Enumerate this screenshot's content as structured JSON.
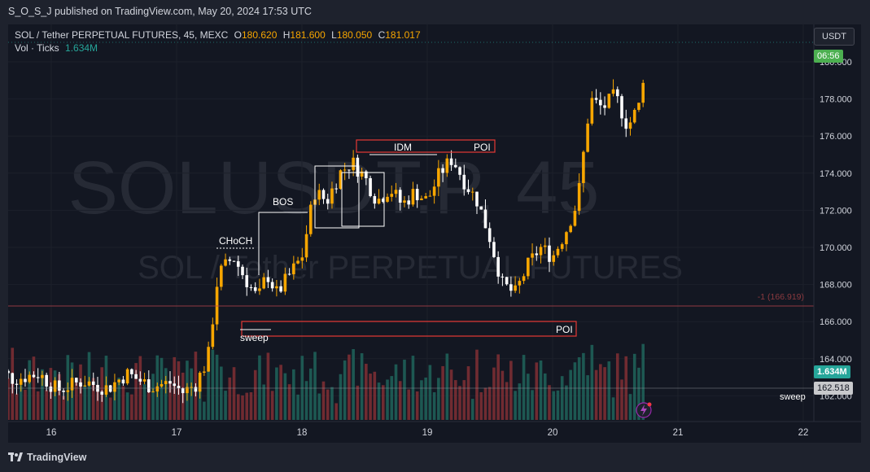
{
  "header": {
    "publisher": "S_O_S_J published on TradingView.com, May 20, 2024 17:53 UTC"
  },
  "legend": {
    "title": "SOL / Tether PERPETUAL FUTURES, 45, MEXC",
    "open_label": "O",
    "open": "180.620",
    "high_label": "H",
    "high": "181.600",
    "low_label": "L",
    "low": "180.050",
    "close_label": "C",
    "close": "181.017",
    "vol_label": "Vol · Ticks",
    "vol_value": "1.634M"
  },
  "currency_button": "USDT",
  "watermark": {
    "symbol": "SOLUSDT.P, 45",
    "description": "SOL / Tether PERPETUAL FUTURES"
  },
  "annotations": {
    "choch": "CHoCH",
    "bos": "BOS",
    "idm": "IDM",
    "poi_top": "POI",
    "poi_bottom": "POI",
    "sweep": "sweep",
    "sweep_right": "sweep",
    "level_label": "-1 (166.919)"
  },
  "price_axis": {
    "ticks": [
      "180.000",
      "178.000",
      "176.000",
      "174.000",
      "172.000",
      "170.000",
      "168.000",
      "166.000",
      "164.000",
      "162.000"
    ],
    "countdown": "06:56",
    "volume_tag": "1.634M",
    "level_tag": "162.518"
  },
  "time_axis": {
    "ticks": [
      "16",
      "17",
      "18",
      "19",
      "20",
      "21",
      "22"
    ]
  },
  "footer": {
    "brand": "TradingView"
  },
  "colors": {
    "bull": "#f7a600",
    "bear": "#ffffff",
    "accent_green": "#26a69a",
    "annotation_red": "#e53935",
    "background": "#131722"
  },
  "chart_data": {
    "type": "candlestick",
    "symbol": "SOL / Tether PERPETUAL FUTURES",
    "interval": "45",
    "exchange": "MEXC",
    "last_ohlc": {
      "open": 180.62,
      "high": 181.6,
      "low": 180.05,
      "close": 181.017
    },
    "ylim": [
      161.3,
      181.4
    ],
    "x_ticks": [
      "16",
      "17",
      "18",
      "19",
      "20",
      "21",
      "22"
    ],
    "price_points": [
      [
        15.52,
        163.6
      ],
      [
        15.7,
        162.9
      ],
      [
        15.9,
        163.2
      ],
      [
        16.05,
        162.3
      ],
      [
        16.25,
        162.8
      ],
      [
        16.45,
        162.4
      ],
      [
        16.6,
        163.2
      ],
      [
        16.8,
        162.5
      ],
      [
        16.95,
        162.7
      ],
      [
        17.05,
        162.2
      ],
      [
        17.15,
        162.6
      ],
      [
        17.25,
        164.0
      ],
      [
        17.33,
        168.5
      ],
      [
        17.45,
        169.5
      ],
      [
        17.55,
        168.3
      ],
      [
        17.65,
        167.2
      ],
      [
        17.72,
        168.6
      ],
      [
        17.8,
        167.5
      ],
      [
        17.9,
        168.5
      ],
      [
        18.0,
        169.5
      ],
      [
        18.1,
        173.0
      ],
      [
        18.2,
        172.5
      ],
      [
        18.3,
        174.0
      ],
      [
        18.4,
        174.6
      ],
      [
        18.5,
        173.8
      ],
      [
        18.6,
        172.5
      ],
      [
        18.7,
        173.2
      ],
      [
        18.8,
        172.3
      ],
      [
        18.9,
        173.0
      ],
      [
        19.0,
        172.5
      ],
      [
        19.1,
        174.0
      ],
      [
        19.2,
        174.8
      ],
      [
        19.3,
        173.5
      ],
      [
        19.4,
        172.5
      ],
      [
        19.5,
        170.5
      ],
      [
        19.6,
        168.0
      ],
      [
        19.7,
        167.5
      ],
      [
        19.8,
        169.0
      ],
      [
        19.9,
        170.0
      ],
      [
        20.0,
        169.5
      ],
      [
        20.1,
        170.8
      ],
      [
        20.2,
        172.5
      ],
      [
        20.3,
        178.0
      ],
      [
        20.4,
        177.5
      ],
      [
        20.5,
        178.2
      ],
      [
        20.6,
        176.5
      ],
      [
        20.7,
        177.8
      ],
      [
        20.75,
        181.0
      ]
    ],
    "levels": [
      {
        "label": "-1 (166.919)",
        "price": 166.919
      },
      {
        "label": "sweep",
        "price": 162.518
      }
    ]
  }
}
